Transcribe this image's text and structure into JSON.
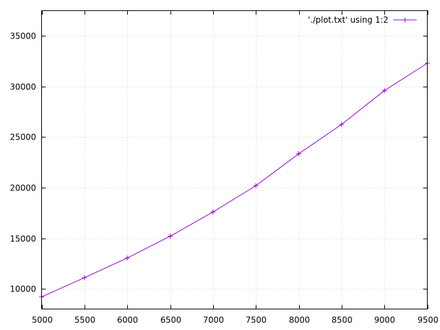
{
  "chart_data": {
    "type": "line",
    "title": "",
    "xlabel": "",
    "ylabel": "",
    "xlim": [
      5000,
      9500
    ],
    "ylim": [
      8000,
      37500
    ],
    "x_ticks": [
      5000,
      5500,
      6000,
      6500,
      7000,
      7500,
      8000,
      8500,
      9000,
      9500
    ],
    "y_ticks": [
      10000,
      15000,
      20000,
      25000,
      30000,
      35000
    ],
    "grid": true,
    "legend_position": "top-right",
    "series": [
      {
        "name": "'./plot.txt' using 1:2",
        "color": "#9400d3",
        "marker": "plus",
        "x": [
          5000,
          5500,
          6000,
          6500,
          7000,
          7500,
          8000,
          8500,
          9000,
          9500
        ],
        "y": [
          9200,
          11100,
          13050,
          15200,
          17600,
          20200,
          23350,
          26250,
          29600,
          32300
        ]
      }
    ]
  }
}
